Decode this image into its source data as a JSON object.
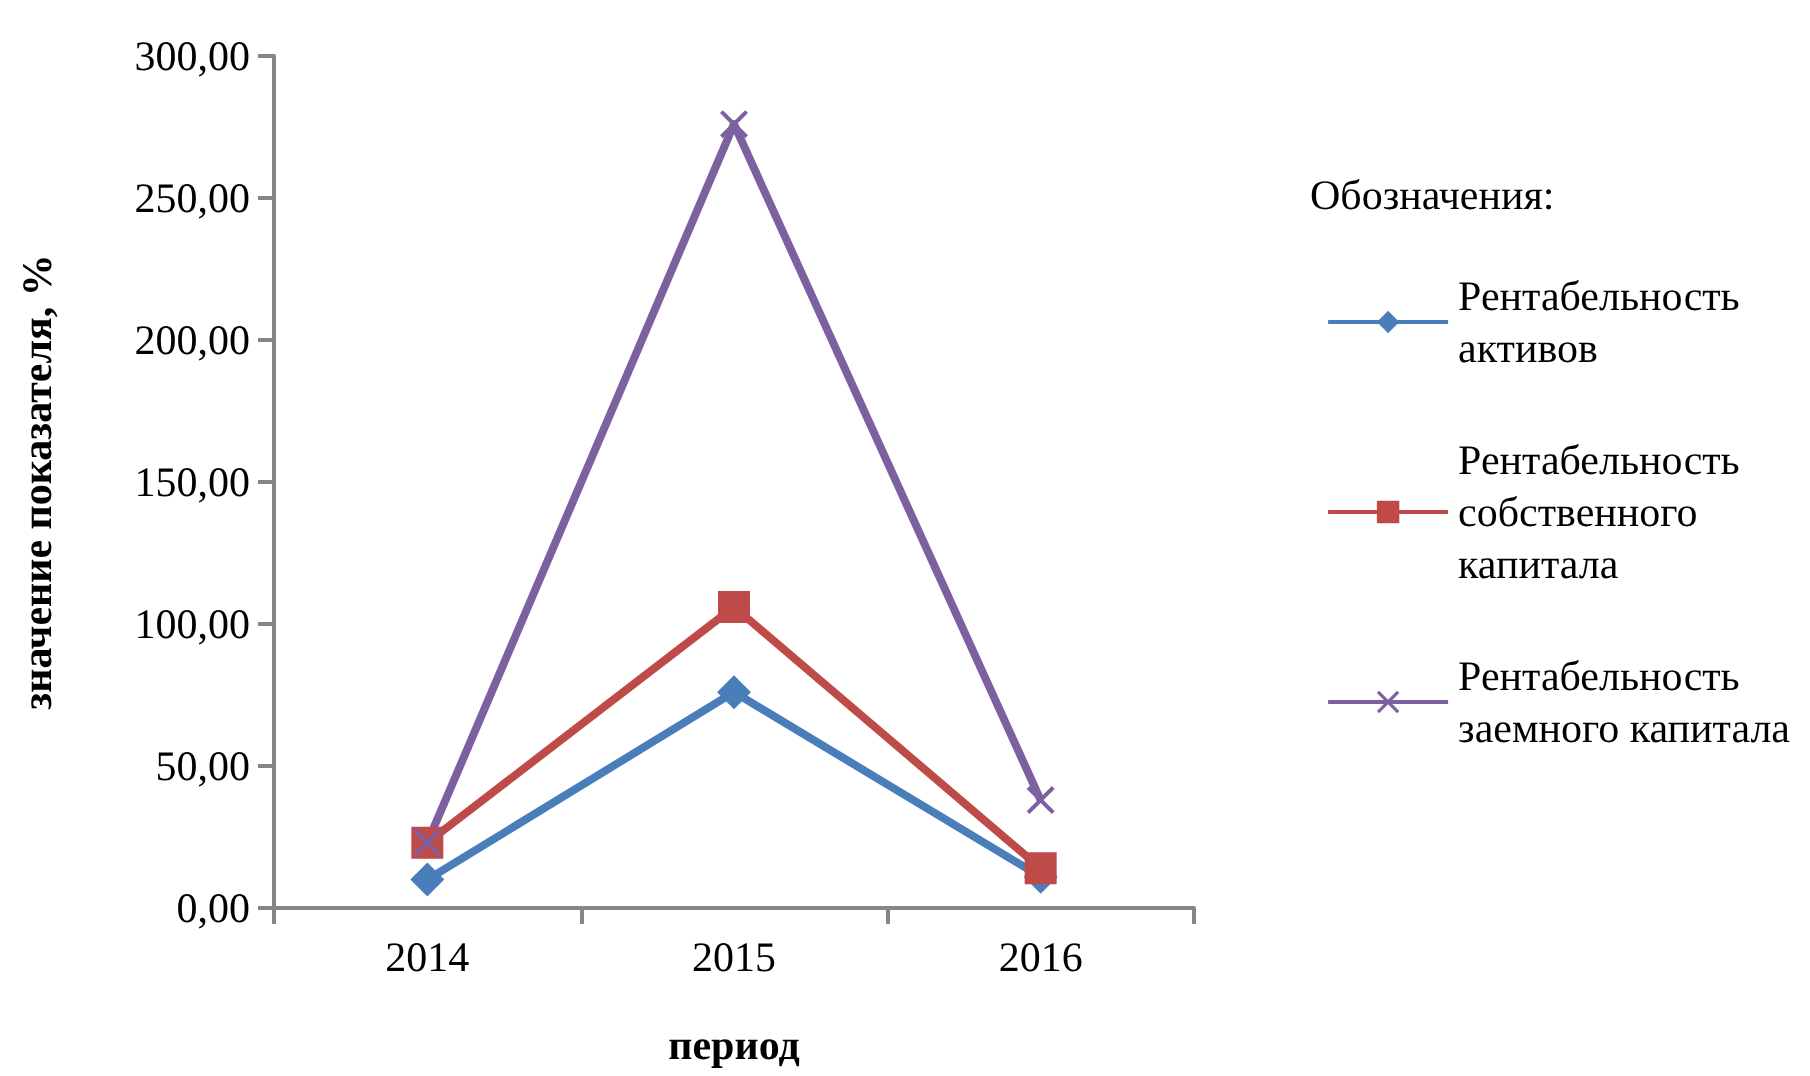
{
  "chart_data": {
    "type": "line",
    "xlabel": "период",
    "ylabel": "значение показателя, %",
    "legend_title": "Обозначения:",
    "categories": [
      "2014",
      "2015",
      "2016"
    ],
    "series": [
      {
        "name": "Рентабельность активов",
        "color": "#4a7ebb",
        "values": [
          10,
          76,
          11
        ],
        "marker": "diamond"
      },
      {
        "name": "Рентабельность собственного капитала",
        "color": "#be4b48",
        "values": [
          23,
          106,
          14
        ],
        "marker": "square"
      },
      {
        "name": "Рентабельность заемного капитала",
        "color": "#7d60a0",
        "values": [
          23,
          276,
          38
        ],
        "marker": "cross"
      }
    ],
    "ylim": [
      0,
      300
    ],
    "yticks": [
      {
        "value": 0,
        "label": "0,00"
      },
      {
        "value": 50,
        "label": "50,00"
      },
      {
        "value": 100,
        "label": "100,00"
      },
      {
        "value": 150,
        "label": "150,00"
      },
      {
        "value": 200,
        "label": "200,00"
      },
      {
        "value": 250,
        "label": "250,00"
      },
      {
        "value": 300,
        "label": "300,00"
      }
    ],
    "grid": false,
    "legend": "right",
    "line_style": "solid"
  }
}
